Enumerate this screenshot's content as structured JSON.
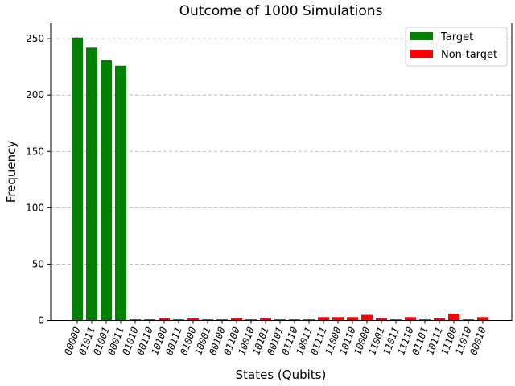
{
  "chart_data": {
    "type": "bar",
    "title": "Outcome of 1000 Simulations",
    "xlabel": "States (Qubits)",
    "ylabel": "Frequency",
    "ylim": [
      0,
      264
    ],
    "yticks": [
      0,
      50,
      100,
      150,
      200,
      250
    ],
    "grid": "y-dashed",
    "legend_position": "top-right",
    "categories": [
      "00000",
      "01011",
      "01001",
      "00011",
      "01010",
      "00110",
      "10100",
      "00111",
      "01000",
      "10001",
      "00100",
      "01100",
      "10010",
      "10101",
      "00101",
      "01110",
      "10011",
      "01111",
      "11000",
      "10110",
      "10000",
      "11001",
      "11011",
      "11110",
      "01101",
      "10111",
      "11100",
      "11010",
      "00010"
    ],
    "series": [
      {
        "name": "Target",
        "color": "#008000",
        "values": [
          251,
          242,
          231,
          226,
          0,
          0,
          0,
          0,
          0,
          0,
          0,
          0,
          0,
          0,
          0,
          0,
          0,
          0,
          0,
          0,
          0,
          0,
          0,
          0,
          0,
          0,
          0,
          0,
          0
        ]
      },
      {
        "name": "Non-target",
        "color": "#ff0000",
        "values": [
          0,
          0,
          0,
          0,
          1,
          1,
          2,
          1,
          2,
          1,
          1,
          2,
          1,
          2,
          1,
          1,
          1,
          3,
          3,
          3,
          5,
          2,
          1,
          3,
          1,
          2,
          6,
          1,
          3
        ]
      }
    ]
  }
}
